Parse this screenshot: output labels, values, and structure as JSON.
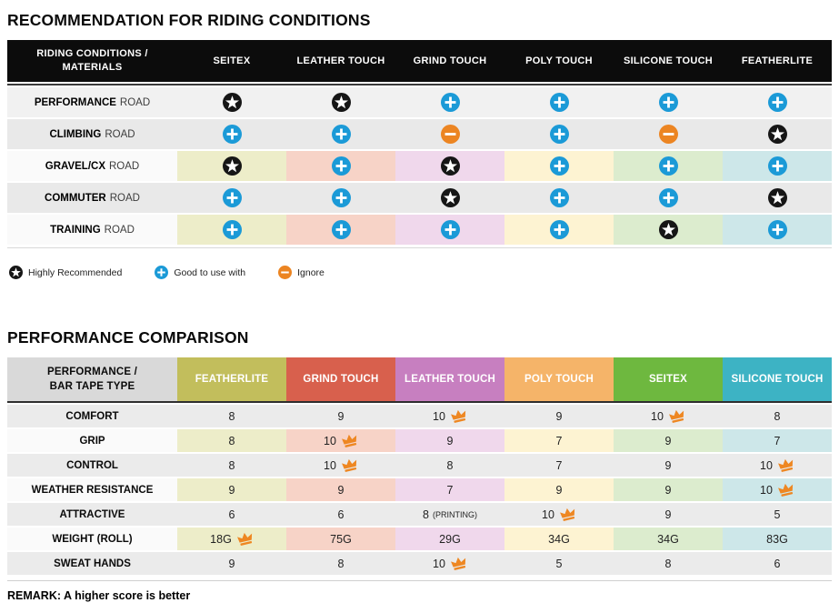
{
  "section1": {
    "title": "RECOMMENDATION FOR RIDING CONDITIONS",
    "table": {
      "corner_header": "RIDING CONDITIONS /\nMATERIALS",
      "columns": [
        {
          "label": "SEITEX",
          "tint": "#ededc9"
        },
        {
          "label": "LEATHER TOUCH",
          "tint": "#f7d3c7"
        },
        {
          "label": "GRIND TOUCH",
          "tint": "#f0d8ec"
        },
        {
          "label": "POLY TOUCH",
          "tint": "#fdf3d2"
        },
        {
          "label": "SILICONE TOUCH",
          "tint": "#dcecce"
        },
        {
          "label": "FEATHERLITE",
          "tint": "#cde7e9"
        }
      ],
      "rows": [
        {
          "label_bold": "PERFORMANCE",
          "label_rest": "ROAD",
          "style": "gray-light",
          "cells": [
            "star",
            "star",
            "plus",
            "plus",
            "plus",
            "plus"
          ]
        },
        {
          "label_bold": "CLIMBING",
          "label_rest": "ROAD",
          "style": "gray-dark",
          "cells": [
            "plus",
            "plus",
            "minus",
            "plus",
            "minus",
            "star"
          ]
        },
        {
          "label_bold": "GRAVEL/CX",
          "label_rest": "ROAD",
          "style": "tinted",
          "cells": [
            "star",
            "plus",
            "star",
            "plus",
            "plus",
            "plus"
          ]
        },
        {
          "label_bold": "COMMUTER",
          "label_rest": "ROAD",
          "style": "gray-dark",
          "cells": [
            "plus",
            "plus",
            "star",
            "plus",
            "plus",
            "star"
          ]
        },
        {
          "label_bold": "TRAINING",
          "label_rest": "ROAD",
          "style": "tinted",
          "cells": [
            "plus",
            "plus",
            "plus",
            "plus",
            "star",
            "plus"
          ]
        }
      ]
    },
    "legend": [
      {
        "icon": "star",
        "label": "Highly Recommended"
      },
      {
        "icon": "plus",
        "label": "Good to use with"
      },
      {
        "icon": "minus",
        "label": "Ignore"
      }
    ]
  },
  "section2": {
    "title": "PERFORMANCE COMPARISON",
    "table": {
      "corner_header": "PERFORMANCE /\nBAR TAPE TYPE",
      "columns": [
        {
          "label": "FEATHERLITE",
          "color": "#c2be5c",
          "tint": "#ededc9"
        },
        {
          "label": "GRIND TOUCH",
          "color": "#d8604d",
          "tint": "#f7d3c7"
        },
        {
          "label": "LEATHER TOUCH",
          "color": "#c77fc0",
          "tint": "#f0d8ec"
        },
        {
          "label": "POLY TOUCH",
          "color": "#f5b469",
          "tint": "#fdf3d2"
        },
        {
          "label": "SEITEX",
          "color": "#6eb83f",
          "tint": "#dcecce"
        },
        {
          "label": "SILICONE TOUCH",
          "color": "#3db3c4",
          "tint": "#cde7e9"
        }
      ],
      "rows": [
        {
          "label": "COMFORT",
          "style": "gray",
          "cells": [
            {
              "value": "8"
            },
            {
              "value": "9"
            },
            {
              "value": "10",
              "crown": true
            },
            {
              "value": "9"
            },
            {
              "value": "10",
              "crown": true
            },
            {
              "value": "8"
            }
          ]
        },
        {
          "label": "GRIP",
          "style": "tinted",
          "cells": [
            {
              "value": "8"
            },
            {
              "value": "10",
              "crown": true
            },
            {
              "value": "9"
            },
            {
              "value": "7"
            },
            {
              "value": "9"
            },
            {
              "value": "7"
            }
          ]
        },
        {
          "label": "CONTROL",
          "style": "gray",
          "cells": [
            {
              "value": "8"
            },
            {
              "value": "10",
              "crown": true
            },
            {
              "value": "8"
            },
            {
              "value": "7"
            },
            {
              "value": "9"
            },
            {
              "value": "10",
              "crown": true
            }
          ]
        },
        {
          "label": "WEATHER RESISTANCE",
          "style": "tinted",
          "cells": [
            {
              "value": "9"
            },
            {
              "value": "9"
            },
            {
              "value": "7"
            },
            {
              "value": "9"
            },
            {
              "value": "9"
            },
            {
              "value": "10",
              "crown": true
            }
          ]
        },
        {
          "label": "ATTRACTIVE",
          "style": "gray",
          "cells": [
            {
              "value": "6"
            },
            {
              "value": "6"
            },
            {
              "value": "8",
              "suffix": "(PRINTING)"
            },
            {
              "value": "10",
              "crown": true
            },
            {
              "value": "9"
            },
            {
              "value": "5"
            }
          ]
        },
        {
          "label": "WEIGHT (ROLL)",
          "style": "tinted",
          "cells": [
            {
              "value": "18G",
              "crown": true
            },
            {
              "value": "75G"
            },
            {
              "value": "29G"
            },
            {
              "value": "34G"
            },
            {
              "value": "34G"
            },
            {
              "value": "83G"
            }
          ]
        },
        {
          "label": "SWEAT HANDS",
          "style": "gray",
          "cells": [
            {
              "value": "9"
            },
            {
              "value": "8"
            },
            {
              "value": "10",
              "crown": true
            },
            {
              "value": "5"
            },
            {
              "value": "8"
            },
            {
              "value": "6"
            }
          ]
        }
      ]
    },
    "remark": "REMARK: A higher score is better"
  },
  "colors": {
    "header1_bg": "#0c0c0c",
    "corner2_bg": "#d9d9d9",
    "row_gray_light": "#f1f1f1",
    "row_gray_dark": "#e9e9e9",
    "row_gray2": "#ebebeb",
    "label_tinted_bg": "#fafafa",
    "icon_star_bg": "#161616",
    "icon_plus_bg": "#1b9ad7",
    "icon_minus_bg": "#ec8522",
    "crown": "#ee8722"
  }
}
